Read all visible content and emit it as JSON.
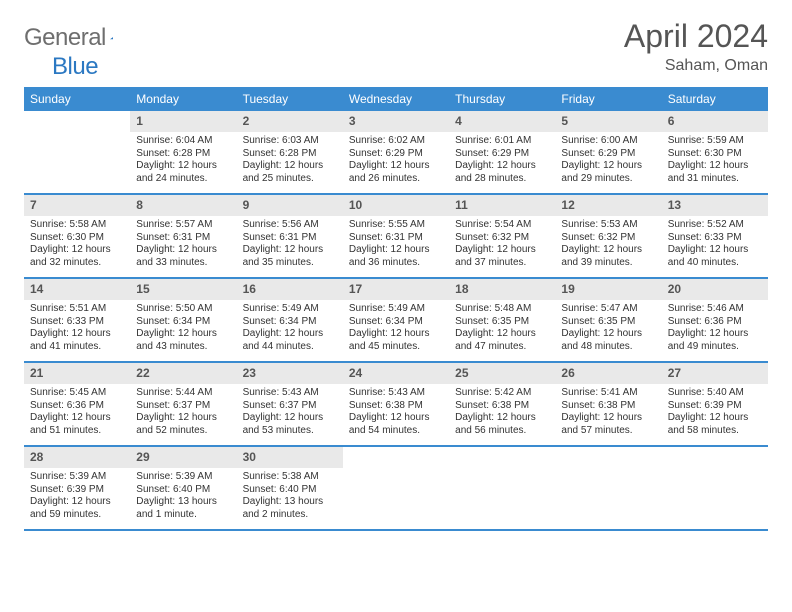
{
  "logo": {
    "word1": "General",
    "word2": "Blue"
  },
  "title": "April 2024",
  "location": "Saham, Oman",
  "colors": {
    "header_bg": "#3a8bd0",
    "header_text": "#ffffff",
    "daynum_bg": "#e9e9e9",
    "daynum_text": "#555555",
    "divider": "#3a8bd0",
    "logo_gray": "#6e6e6e",
    "logo_blue": "#2b78c2",
    "title_color": "#555555"
  },
  "dow": [
    "Sunday",
    "Monday",
    "Tuesday",
    "Wednesday",
    "Thursday",
    "Friday",
    "Saturday"
  ],
  "weeks": [
    [
      null,
      {
        "n": "1",
        "sr": "6:04 AM",
        "ss": "6:28 PM",
        "dl": "12 hours and 24 minutes."
      },
      {
        "n": "2",
        "sr": "6:03 AM",
        "ss": "6:28 PM",
        "dl": "12 hours and 25 minutes."
      },
      {
        "n": "3",
        "sr": "6:02 AM",
        "ss": "6:29 PM",
        "dl": "12 hours and 26 minutes."
      },
      {
        "n": "4",
        "sr": "6:01 AM",
        "ss": "6:29 PM",
        "dl": "12 hours and 28 minutes."
      },
      {
        "n": "5",
        "sr": "6:00 AM",
        "ss": "6:29 PM",
        "dl": "12 hours and 29 minutes."
      },
      {
        "n": "6",
        "sr": "5:59 AM",
        "ss": "6:30 PM",
        "dl": "12 hours and 31 minutes."
      }
    ],
    [
      {
        "n": "7",
        "sr": "5:58 AM",
        "ss": "6:30 PM",
        "dl": "12 hours and 32 minutes."
      },
      {
        "n": "8",
        "sr": "5:57 AM",
        "ss": "6:31 PM",
        "dl": "12 hours and 33 minutes."
      },
      {
        "n": "9",
        "sr": "5:56 AM",
        "ss": "6:31 PM",
        "dl": "12 hours and 35 minutes."
      },
      {
        "n": "10",
        "sr": "5:55 AM",
        "ss": "6:31 PM",
        "dl": "12 hours and 36 minutes."
      },
      {
        "n": "11",
        "sr": "5:54 AM",
        "ss": "6:32 PM",
        "dl": "12 hours and 37 minutes."
      },
      {
        "n": "12",
        "sr": "5:53 AM",
        "ss": "6:32 PM",
        "dl": "12 hours and 39 minutes."
      },
      {
        "n": "13",
        "sr": "5:52 AM",
        "ss": "6:33 PM",
        "dl": "12 hours and 40 minutes."
      }
    ],
    [
      {
        "n": "14",
        "sr": "5:51 AM",
        "ss": "6:33 PM",
        "dl": "12 hours and 41 minutes."
      },
      {
        "n": "15",
        "sr": "5:50 AM",
        "ss": "6:34 PM",
        "dl": "12 hours and 43 minutes."
      },
      {
        "n": "16",
        "sr": "5:49 AM",
        "ss": "6:34 PM",
        "dl": "12 hours and 44 minutes."
      },
      {
        "n": "17",
        "sr": "5:49 AM",
        "ss": "6:34 PM",
        "dl": "12 hours and 45 minutes."
      },
      {
        "n": "18",
        "sr": "5:48 AM",
        "ss": "6:35 PM",
        "dl": "12 hours and 47 minutes."
      },
      {
        "n": "19",
        "sr": "5:47 AM",
        "ss": "6:35 PM",
        "dl": "12 hours and 48 minutes."
      },
      {
        "n": "20",
        "sr": "5:46 AM",
        "ss": "6:36 PM",
        "dl": "12 hours and 49 minutes."
      }
    ],
    [
      {
        "n": "21",
        "sr": "5:45 AM",
        "ss": "6:36 PM",
        "dl": "12 hours and 51 minutes."
      },
      {
        "n": "22",
        "sr": "5:44 AM",
        "ss": "6:37 PM",
        "dl": "12 hours and 52 minutes."
      },
      {
        "n": "23",
        "sr": "5:43 AM",
        "ss": "6:37 PM",
        "dl": "12 hours and 53 minutes."
      },
      {
        "n": "24",
        "sr": "5:43 AM",
        "ss": "6:38 PM",
        "dl": "12 hours and 54 minutes."
      },
      {
        "n": "25",
        "sr": "5:42 AM",
        "ss": "6:38 PM",
        "dl": "12 hours and 56 minutes."
      },
      {
        "n": "26",
        "sr": "5:41 AM",
        "ss": "6:38 PM",
        "dl": "12 hours and 57 minutes."
      },
      {
        "n": "27",
        "sr": "5:40 AM",
        "ss": "6:39 PM",
        "dl": "12 hours and 58 minutes."
      }
    ],
    [
      {
        "n": "28",
        "sr": "5:39 AM",
        "ss": "6:39 PM",
        "dl": "12 hours and 59 minutes."
      },
      {
        "n": "29",
        "sr": "5:39 AM",
        "ss": "6:40 PM",
        "dl": "13 hours and 1 minute."
      },
      {
        "n": "30",
        "sr": "5:38 AM",
        "ss": "6:40 PM",
        "dl": "13 hours and 2 minutes."
      },
      null,
      null,
      null,
      null
    ]
  ],
  "labels": {
    "sunrise": "Sunrise:",
    "sunset": "Sunset:",
    "daylight": "Daylight:"
  }
}
